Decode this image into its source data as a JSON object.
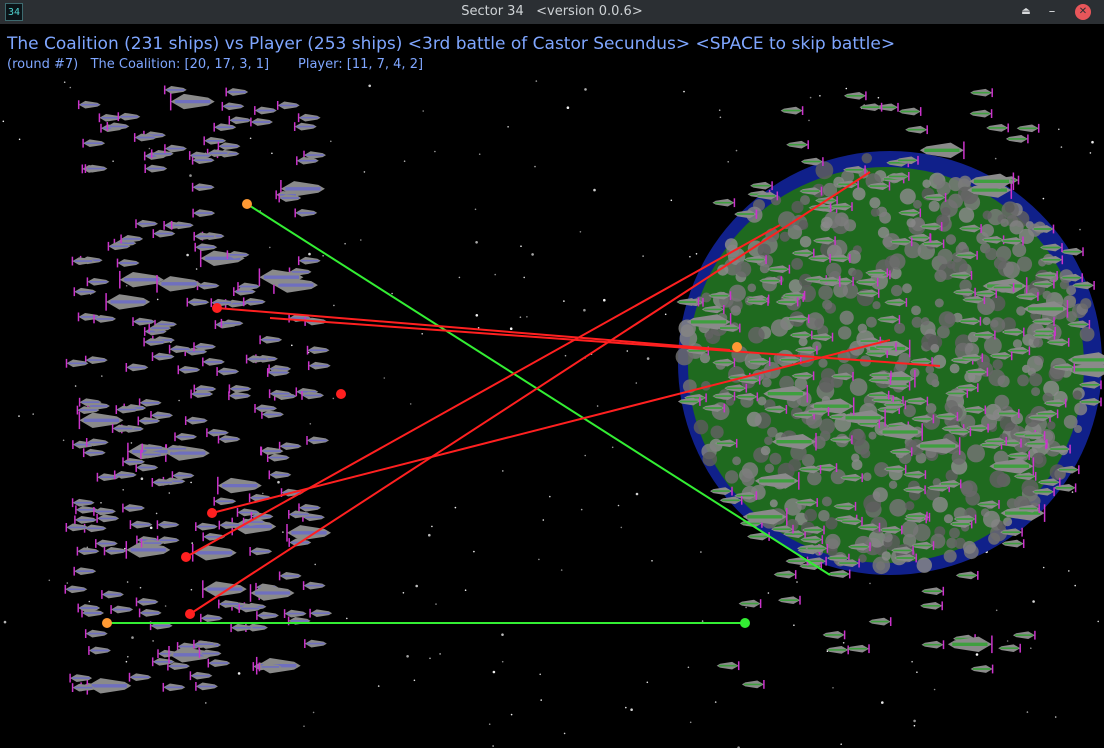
{
  "window": {
    "icon_label": "34",
    "title": "Sector 34   <version 0.0.6>",
    "buttons": {
      "eject": "⏏",
      "minimize": "–",
      "close": "✕"
    }
  },
  "battle": {
    "headline": "The Coalition (231 ships) vs Player (253 ships) <3rd battle of Castor Secundus> <SPACE to skip battle>",
    "status": "(round #7)   The Coalition: [20, 17, 3, 1]       Player: [11, 7, 4, 2]",
    "factions": {
      "left": {
        "name": "The Coalition",
        "ships": 231,
        "counts": [
          20,
          17,
          3,
          1
        ],
        "hull_color": "#6f6fbf",
        "accent": "#cc33cc"
      },
      "right": {
        "name": "Player",
        "ships": 253,
        "counts": [
          11,
          7,
          4,
          2
        ],
        "hull_color": "#3f9f3f",
        "accent": "#cc33cc"
      }
    },
    "planet": {
      "name": "Castor Secundus",
      "land_color": "#1f6a1f",
      "ocean_color": "#10208a",
      "cloud_color": "#707070"
    },
    "weapon_colors": {
      "laser_red": "#ff2020",
      "laser_green": "#33ee33",
      "impact_orange": "#ff9933"
    }
  }
}
